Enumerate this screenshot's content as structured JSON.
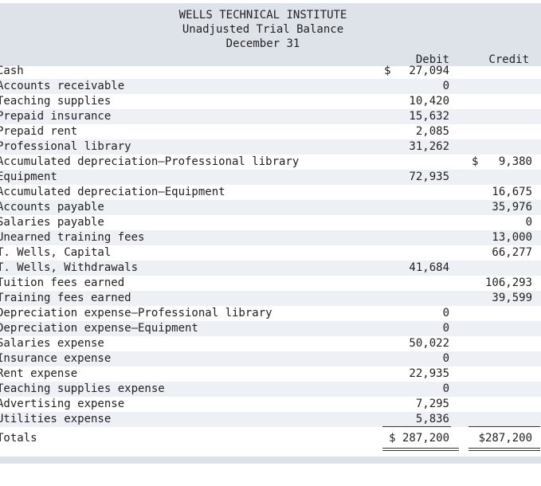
{
  "header": {
    "company": "WELLS TECHNICAL INSTITUTE",
    "title": "Unadjusted Trial Balance",
    "date": "December 31",
    "debit_label": "Debit",
    "credit_label": "Credit"
  },
  "currency_symbol": "$",
  "rows": [
    {
      "account": "Cash",
      "debit": "27,094",
      "credit": "",
      "debit_symbol": true
    },
    {
      "account": "Accounts receivable",
      "debit": "0",
      "credit": ""
    },
    {
      "account": "Teaching supplies",
      "debit": "10,420",
      "credit": ""
    },
    {
      "account": "Prepaid insurance",
      "debit": "15,632",
      "credit": ""
    },
    {
      "account": "Prepaid rent",
      "debit": "2,085",
      "credit": ""
    },
    {
      "account": "Professional library",
      "debit": "31,262",
      "credit": ""
    },
    {
      "account": "Accumulated depreciation—Professional library",
      "debit": "",
      "credit": "9,380",
      "credit_symbol": true
    },
    {
      "account": "Equipment",
      "debit": "72,935",
      "credit": ""
    },
    {
      "account": "Accumulated depreciation—Equipment",
      "debit": "",
      "credit": "16,675"
    },
    {
      "account": "Accounts payable",
      "debit": "",
      "credit": "35,976"
    },
    {
      "account": "Salaries payable",
      "debit": "",
      "credit": "0"
    },
    {
      "account": "Unearned training fees",
      "debit": "",
      "credit": "13,000"
    },
    {
      "account": "T. Wells, Capital",
      "debit": "",
      "credit": "66,277"
    },
    {
      "account": "T. Wells, Withdrawals",
      "debit": "41,684",
      "credit": ""
    },
    {
      "account": "Tuition fees earned",
      "debit": "",
      "credit": "106,293"
    },
    {
      "account": "Training fees earned",
      "debit": "",
      "credit": "39,599"
    },
    {
      "account": "Depreciation expense—Professional library",
      "debit": "0",
      "credit": ""
    },
    {
      "account": "Depreciation expense—Equipment",
      "debit": "0",
      "credit": ""
    },
    {
      "account": "Salaries expense",
      "debit": "50,022",
      "credit": ""
    },
    {
      "account": "Insurance expense",
      "debit": "0",
      "credit": ""
    },
    {
      "account": "Rent expense",
      "debit": "22,935",
      "credit": ""
    },
    {
      "account": "Teaching supplies expense",
      "debit": "0",
      "credit": ""
    },
    {
      "account": "Advertising expense",
      "debit": "7,295",
      "credit": ""
    },
    {
      "account": "Utilities expense",
      "debit": "5,836",
      "credit": ""
    }
  ],
  "totals": {
    "label": "Totals",
    "debit": "$ 287,200",
    "credit": "$287,200"
  }
}
